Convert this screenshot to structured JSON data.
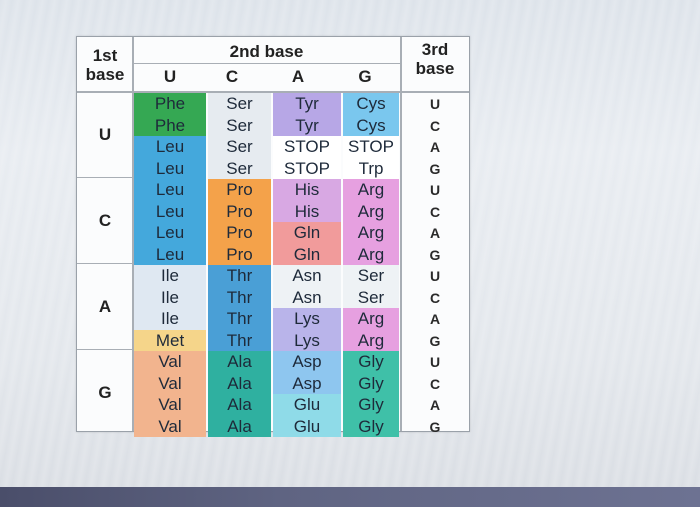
{
  "headers": {
    "first_base": [
      "1st",
      "base"
    ],
    "second_base": "2nd base",
    "third_base": [
      "3rd",
      "base"
    ],
    "second_columns": [
      "U",
      "C",
      "A",
      "G"
    ]
  },
  "first_bases": [
    "U",
    "C",
    "A",
    "G"
  ],
  "third_bases": [
    "U",
    "C",
    "A",
    "G",
    "U",
    "C",
    "A",
    "G",
    "U",
    "C",
    "A",
    "G",
    "U",
    "C",
    "A",
    "G"
  ],
  "columns": {
    "U": [
      "Phe",
      "Phe",
      "Leu",
      "Leu",
      "Leu",
      "Leu",
      "Leu",
      "Leu",
      "Ile",
      "Ile",
      "Ile",
      "Met",
      "Val",
      "Val",
      "Val",
      "Val"
    ],
    "C": [
      "Ser",
      "Ser",
      "Ser",
      "Ser",
      "Pro",
      "Pro",
      "Pro",
      "Pro",
      "Thr",
      "Thr",
      "Thr",
      "Thr",
      "Ala",
      "Ala",
      "Ala",
      "Ala"
    ],
    "A": [
      "Tyr",
      "Tyr",
      "STOP",
      "STOP",
      "His",
      "His",
      "Gln",
      "Gln",
      "Asn",
      "Asn",
      "Lys",
      "Lys",
      "Asp",
      "Asp",
      "Glu",
      "Glu"
    ],
    "G": [
      "Cys",
      "Cys",
      "STOP",
      "Trp",
      "Arg",
      "Arg",
      "Arg",
      "Arg",
      "Ser",
      "Ser",
      "Arg",
      "Arg",
      "Gly",
      "Gly",
      "Gly",
      "Gly"
    ]
  },
  "colors": {
    "phe": "#35a853",
    "leu": "#44a8dc",
    "ile_u": "#dfe8f2",
    "met": "#f5d58a",
    "val": "#f2b48e",
    "ser": "#e6ebf0",
    "pro": "#f4a24a",
    "thr": "#4a9fd6",
    "ala": "#2fb0a0",
    "tyr": "#b7a7e6",
    "stop": "#ffffff",
    "his": "#d8a8e3",
    "gln": "#f19b9b",
    "asn": "#eef2f5",
    "lys": "#b9b4ea",
    "asp": "#8ec6ef",
    "glu": "#8fdbe8",
    "cys": "#7ac7ee",
    "trp": "#ffffff",
    "arg": "#e6a0e0",
    "ser_g": "#eef2f5",
    "arg2": "#e6a0e0",
    "gly": "#3fc0a8"
  }
}
